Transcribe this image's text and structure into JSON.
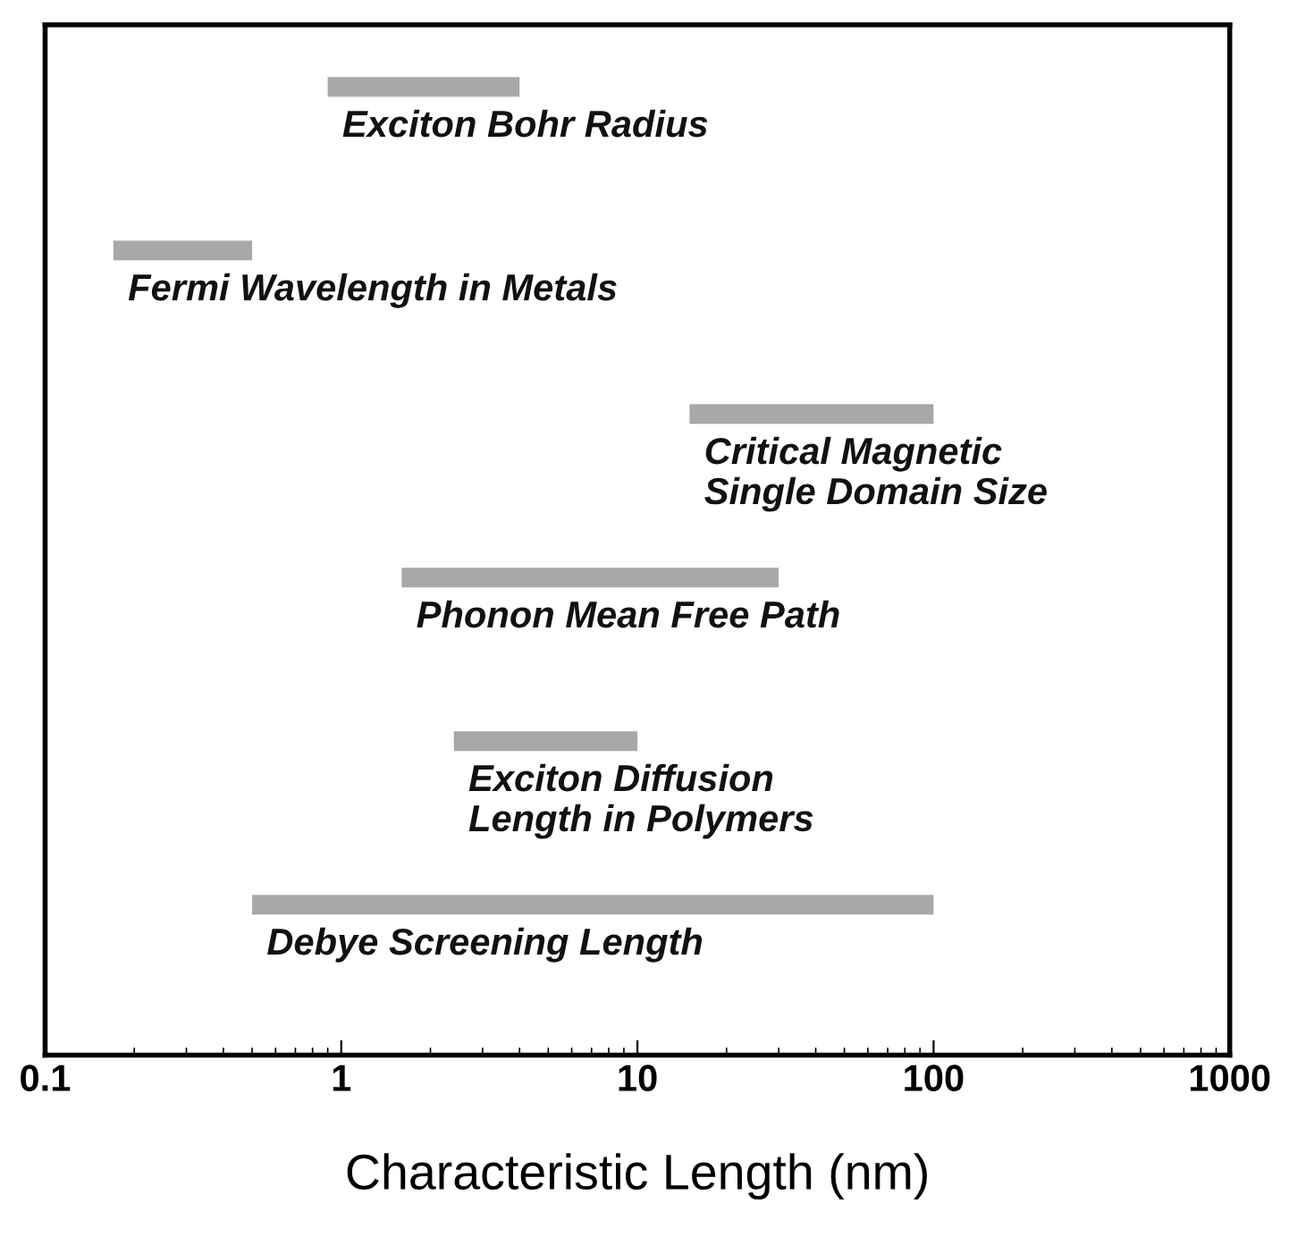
{
  "chart_data": {
    "type": "bar",
    "orientation": "horizontal",
    "xlabel": "Characteristic Length (nm)",
    "categories": [
      "Exciton Bohr Radius",
      "Fermi Wavelength in Metals",
      "Critical Magnetic\nSingle Domain Size",
      "Phonon Mean Free Path",
      "Exciton Diffusion\nLength in Polymers",
      "Debye Screening Length"
    ],
    "base": [
      0.9,
      0.17,
      15,
      1.6,
      2.4,
      0.5
    ],
    "values": [
      3.1,
      0.33,
      85,
      28.4,
      7.6,
      99.5
    ],
    "color": "#a8a8a8",
    "log": "x",
    "xlim": [
      0.1,
      1000
    ],
    "xticks": [
      0.1,
      1,
      10,
      100,
      1000
    ],
    "tick_labels": "x",
    "grid": false,
    "legend": false
  }
}
